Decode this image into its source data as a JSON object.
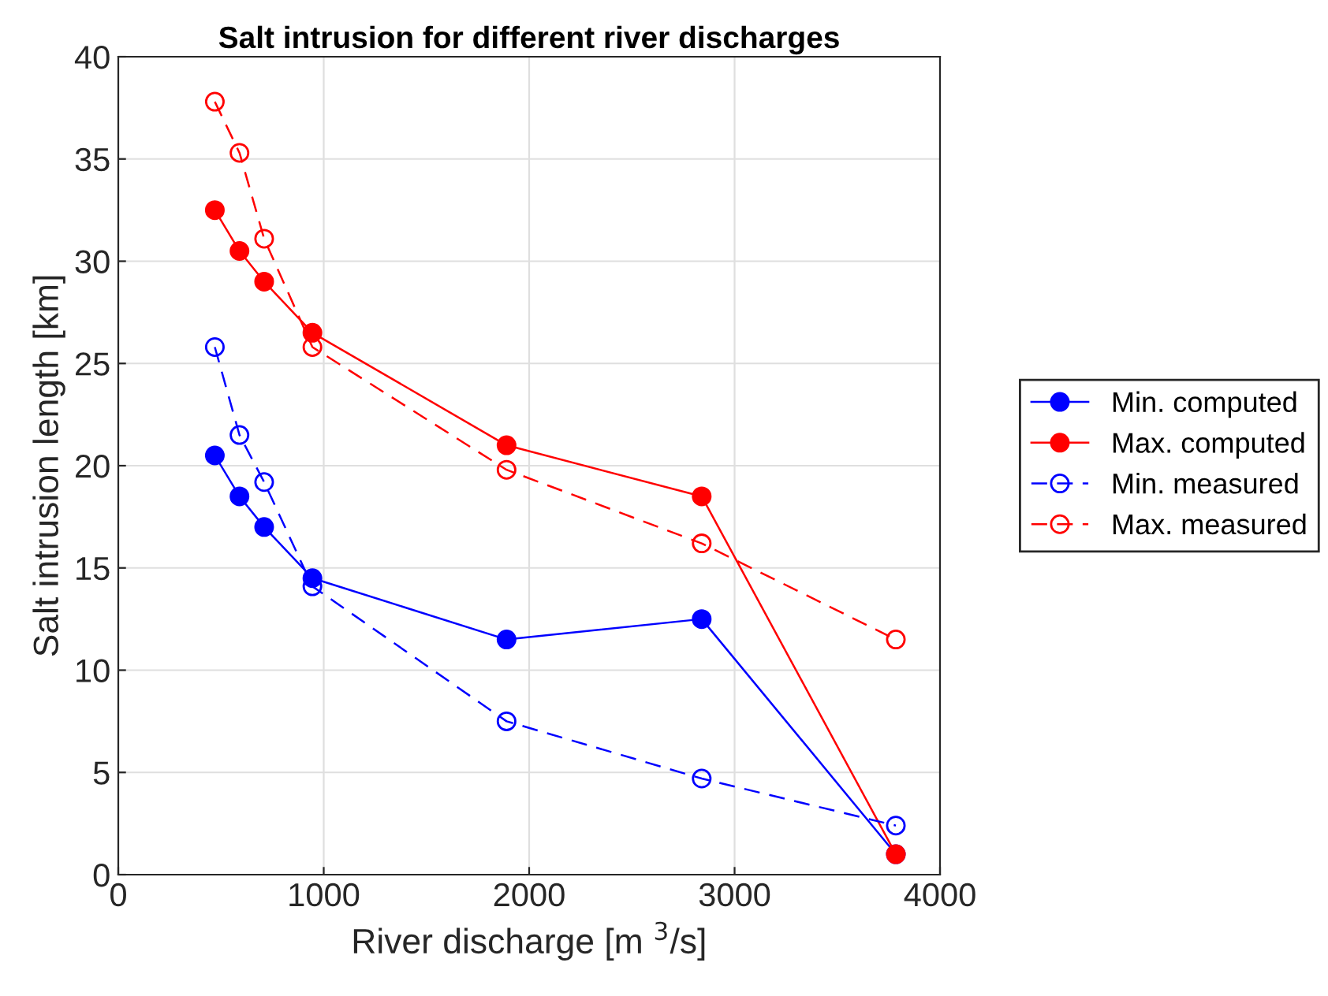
{
  "chart_data": {
    "type": "line",
    "title": "Salt intrusion for different river discharges",
    "xlabel": "River discharge [m $^{3}$/s]",
    "ylabel": "Salt intrusion length [km]",
    "x": [
      470,
      590,
      710,
      945,
      1890,
      2840,
      3785
    ],
    "series": [
      {
        "name": "Min. computed",
        "color": "#0000ff",
        "line_style": "solid",
        "marker": "circle",
        "values": [
          20.5,
          18.5,
          17,
          14.5,
          11.5,
          12.5,
          1
        ]
      },
      {
        "name": "Max. computed",
        "color": "#ff0000",
        "line_style": "solid",
        "marker": "circle",
        "values": [
          32.5,
          30.5,
          29,
          26.5,
          21,
          18.5,
          1
        ]
      },
      {
        "name": "Min. measured",
        "color": "#0000ff",
        "line_style": "dashed",
        "marker": "circle",
        "values": [
          25.8,
          21.5,
          19.2,
          14.1,
          7.5,
          4.7,
          2.4
        ]
      },
      {
        "name": "Max. measured",
        "color": "#ff0000",
        "line_style": "dashed",
        "marker": "circle",
        "values": [
          37.8,
          35.3,
          31.1,
          25.8,
          19.8,
          16.2,
          11.5
        ]
      }
    ],
    "xlim": [
      0,
      4000
    ],
    "xticks": [
      0,
      1000,
      2000,
      3000,
      4000
    ],
    "ylim": [
      0,
      40
    ],
    "yticks": [
      0,
      5,
      10,
      15,
      20,
      25,
      30,
      35,
      40
    ],
    "grid": true,
    "legend": "right"
  }
}
